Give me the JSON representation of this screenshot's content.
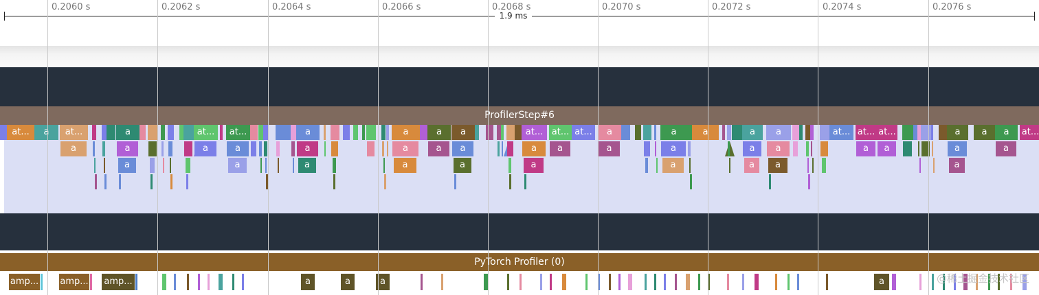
{
  "timeline": {
    "ticks": [
      "0.2060 s",
      "0.2062 s",
      "0.2064 s",
      "0.2066 s",
      "0.2068 s",
      "0.2070 s",
      "0.2072 s",
      "0.2074 s",
      "0.2076 s"
    ],
    "measurement": "1.9 ms"
  },
  "tracks": {
    "profiler_step": {
      "label": "ProfilerStep#6"
    },
    "pytorch_profiler": {
      "label": "PyTorch Profiler (0)"
    }
  },
  "slice_labels": {
    "short": "a",
    "at": "at...",
    "amp": "amp..."
  },
  "watermark": "@稀土掘金技术社区",
  "colors": {
    "background": "#ffffff",
    "dark_band": "#26303d",
    "track_fill": "#dbdff5",
    "profiler_step": "#7f6a5e",
    "pytorch_profiler": "#8a6028",
    "palette": [
      "#5fc56e",
      "#7b7fe8",
      "#c03a86",
      "#4aa39e",
      "#e58aa0",
      "#b15fd6",
      "#3d9950",
      "#6a8cd8",
      "#a5558f",
      "#d88a3c",
      "#2e8a72",
      "#9aa0e8",
      "#e7a0d9",
      "#5a6f2e",
      "#7b5a2c",
      "#d9a16f"
    ]
  }
}
